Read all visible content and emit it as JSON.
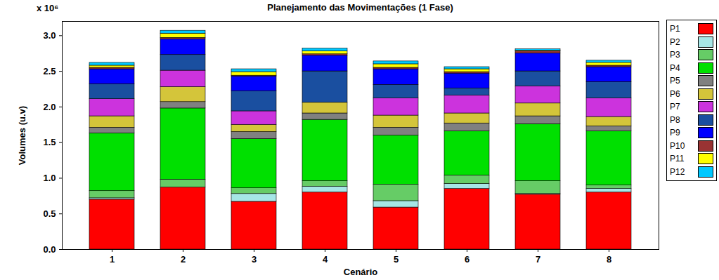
{
  "chart_data": {
    "type": "bar",
    "stacked": true,
    "title": "Planejamento das Movimentações (1 Fase)",
    "x_label": "Cenário",
    "y_label": "Volumes (u.v)",
    "annotations": [
      "x 10⁶"
    ],
    "categories": [
      "1",
      "2",
      "3",
      "4",
      "5",
      "6",
      "7",
      "8"
    ],
    "series": [
      {
        "name": "P1",
        "color": "#ff0000",
        "values": [
          0.7,
          0.87,
          0.67,
          0.8,
          0.59,
          0.85,
          0.77,
          0.8
        ]
      },
      {
        "name": "P2",
        "color": "#a6e6e6",
        "values": [
          0.02,
          0.0,
          0.11,
          0.08,
          0.09,
          0.07,
          0.01,
          0.05
        ]
      },
      {
        "name": "P3",
        "color": "#66cc66",
        "values": [
          0.1,
          0.11,
          0.08,
          0.08,
          0.23,
          0.12,
          0.18,
          0.05
        ]
      },
      {
        "name": "P4",
        "color": "#00e000",
        "values": [
          0.81,
          1.0,
          0.69,
          0.86,
          0.69,
          0.62,
          0.8,
          0.76
        ]
      },
      {
        "name": "P5",
        "color": "#808080",
        "values": [
          0.08,
          0.09,
          0.1,
          0.09,
          0.11,
          0.11,
          0.11,
          0.07
        ]
      },
      {
        "name": "P6",
        "color": "#d4c53a",
        "values": [
          0.16,
          0.21,
          0.1,
          0.15,
          0.17,
          0.14,
          0.18,
          0.13
        ]
      },
      {
        "name": "P7",
        "color": "#cc33dd",
        "values": [
          0.24,
          0.23,
          0.19,
          0.0,
          0.24,
          0.25,
          0.24,
          0.26
        ]
      },
      {
        "name": "P8",
        "color": "#1a4fa0",
        "values": [
          0.21,
          0.22,
          0.28,
          0.44,
          0.19,
          0.1,
          0.21,
          0.23
        ]
      },
      {
        "name": "P9",
        "color": "#0000ff",
        "values": [
          0.21,
          0.22,
          0.21,
          0.22,
          0.22,
          0.21,
          0.25,
          0.21
        ]
      },
      {
        "name": "P10",
        "color": "#993333",
        "values": [
          0.02,
          0.02,
          0.01,
          0.02,
          0.02,
          0.02,
          0.03,
          0.02
        ]
      },
      {
        "name": "P11",
        "color": "#ffff00",
        "values": [
          0.03,
          0.06,
          0.05,
          0.04,
          0.05,
          0.04,
          0.01,
          0.04
        ]
      },
      {
        "name": "P12",
        "color": "#00c8ff",
        "values": [
          0.04,
          0.04,
          0.04,
          0.04,
          0.04,
          0.03,
          0.02,
          0.03
        ]
      }
    ],
    "ylim": [
      0,
      3.2
    ],
    "yticks": [
      0,
      0.5,
      1,
      1.5,
      2,
      2.5,
      3
    ],
    "grid": false,
    "legend": "right"
  }
}
